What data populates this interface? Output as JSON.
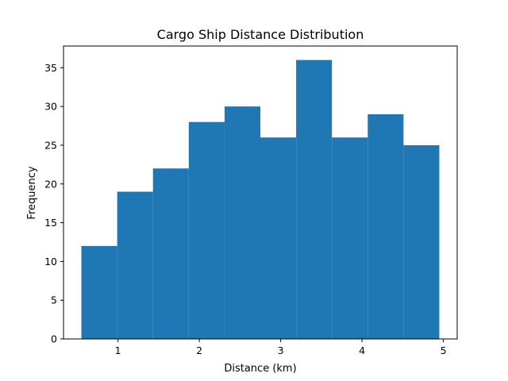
{
  "chart_data": {
    "type": "bar",
    "title": "Cargo Ship Distance Distribution",
    "xlabel": "Distance (km)",
    "ylabel": "Frequency",
    "bin_edges": [
      0.55,
      0.99,
      1.43,
      1.87,
      2.31,
      2.75,
      3.19,
      3.63,
      4.07,
      4.51,
      4.95
    ],
    "values": [
      12,
      19,
      22,
      28,
      30,
      26,
      36,
      26,
      29,
      25
    ],
    "xlim": [
      0.33,
      5.17
    ],
    "ylim": [
      0,
      37.8
    ],
    "xticks": [
      1,
      2,
      3,
      4,
      5
    ],
    "yticks": [
      0,
      5,
      10,
      15,
      20,
      25,
      30,
      35
    ],
    "bar_color": "#1f77b4",
    "grid": false
  }
}
